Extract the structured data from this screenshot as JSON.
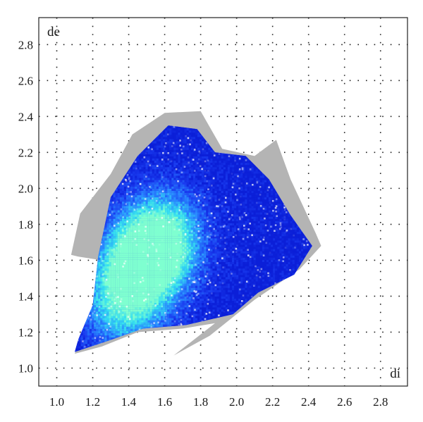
{
  "chart_data": {
    "type": "heatmap",
    "subtype": "hirshfeld-2d-fingerprint-plot",
    "title": "",
    "xlabel": "di",
    "ylabel": "de",
    "x_ticks": [
      "1.0",
      "1.2",
      "1.4",
      "1.6",
      "1.8",
      "2.0",
      "2.2",
      "2.4",
      "2.6",
      "2.8"
    ],
    "y_ticks": [
      "1.0",
      "1.2",
      "1.4",
      "1.6",
      "1.8",
      "2.0",
      "2.2",
      "2.4",
      "2.6",
      "2.8"
    ],
    "xlim": [
      0.9,
      2.95
    ],
    "ylim": [
      0.9,
      2.95
    ],
    "grid": true,
    "grid_style": "dotted",
    "legend": "none",
    "colors": {
      "full_fingerprint": "#b4b4b4",
      "low_density": "#1a2fe0",
      "mid_density": "#1f7fff",
      "high_density": "#35e0f0",
      "peak_density": "#7fffd0"
    },
    "regions": [
      {
        "name": "full-fingerprint",
        "color": "#b4b4b4",
        "polygon_di_de": [
          [
            1.08,
            1.63
          ],
          [
            1.13,
            1.86
          ],
          [
            1.3,
            2.08
          ],
          [
            1.42,
            2.3
          ],
          [
            1.6,
            2.42
          ],
          [
            1.8,
            2.43
          ],
          [
            1.92,
            2.22
          ],
          [
            2.1,
            2.18
          ],
          [
            2.22,
            2.27
          ],
          [
            2.3,
            2.05
          ],
          [
            2.44,
            1.75
          ],
          [
            2.47,
            1.68
          ],
          [
            2.35,
            1.55
          ],
          [
            2.1,
            1.38
          ],
          [
            1.85,
            1.18
          ],
          [
            1.65,
            1.07
          ],
          [
            1.88,
            1.25
          ],
          [
            1.7,
            1.22
          ],
          [
            1.45,
            1.2
          ],
          [
            1.25,
            1.12
          ],
          [
            1.1,
            1.08
          ],
          [
            1.22,
            1.4
          ],
          [
            1.25,
            1.6
          ],
          [
            1.12,
            1.62
          ]
        ]
      },
      {
        "name": "decorated-region",
        "color": "#1a2fe0",
        "polygon_di_de": [
          [
            1.1,
            1.09
          ],
          [
            1.12,
            1.16
          ],
          [
            1.2,
            1.35
          ],
          [
            1.23,
            1.62
          ],
          [
            1.3,
            1.95
          ],
          [
            1.45,
            2.18
          ],
          [
            1.62,
            2.35
          ],
          [
            1.78,
            2.33
          ],
          [
            1.88,
            2.2
          ],
          [
            2.05,
            2.18
          ],
          [
            2.18,
            2.05
          ],
          [
            2.3,
            1.85
          ],
          [
            2.42,
            1.68
          ],
          [
            2.32,
            1.52
          ],
          [
            2.12,
            1.42
          ],
          [
            1.98,
            1.3
          ],
          [
            1.72,
            1.24
          ],
          [
            1.48,
            1.22
          ],
          [
            1.28,
            1.15
          ]
        ]
      }
    ],
    "density_peaks": [
      {
        "di": 1.45,
        "de": 1.55,
        "weight": 1.0
      },
      {
        "di": 1.55,
        "de": 1.68,
        "weight": 0.85
      },
      {
        "di": 1.35,
        "de": 1.35,
        "weight": 0.8
      },
      {
        "di": 1.62,
        "de": 1.75,
        "weight": 0.5
      }
    ]
  }
}
